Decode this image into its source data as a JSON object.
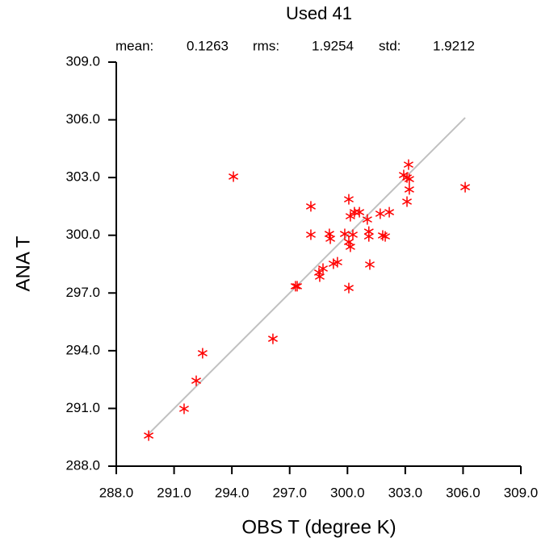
{
  "chart_data": {
    "type": "scatter",
    "title": "Used  41",
    "stats": [
      {
        "label": "mean:",
        "value": 0.1263
      },
      {
        "label": "rms:",
        "value": 1.9254
      },
      {
        "label": "std:",
        "value": 1.9212
      }
    ],
    "x_label": "OBS T  (degree K)",
    "y_label": "ANA T",
    "x": [
      289.68,
      291.52,
      292.15,
      292.48,
      294.08,
      296.13,
      297.3,
      297.39,
      298.1,
      298.1,
      298.52,
      298.56,
      298.73,
      299.06,
      299.11,
      299.27,
      299.48,
      299.86,
      300.07,
      300.07,
      300.15,
      300.15,
      300.28,
      300.36,
      300.07,
      300.62,
      301.03,
      301.11,
      301.11,
      301.16,
      301.7,
      301.83,
      301.96,
      302.17,
      302.92,
      303.09,
      303.09,
      303.17,
      303.21,
      303.21,
      306.11
    ],
    "values": [
      289.59,
      290.98,
      292.44,
      293.87,
      303.05,
      294.62,
      297.35,
      297.35,
      301.5,
      300.03,
      298.06,
      297.85,
      298.27,
      300.07,
      299.82,
      298.52,
      298.6,
      300.07,
      301.87,
      297.26,
      299.4,
      300.99,
      300.03,
      301.2,
      299.65,
      301.2,
      300.82,
      299.94,
      300.19,
      298.48,
      301.12,
      299.99,
      299.94,
      301.2,
      303.13,
      303.0,
      301.75,
      303.67,
      302.38,
      302.92,
      302.5
    ],
    "color": "#ff0000",
    "reference_line": {
      "x": [
        289.68,
        306.11
      ],
      "values": [
        289.68,
        306.11
      ],
      "color": "#c0c0c0"
    },
    "xlim": [
      288,
      309
    ],
    "ylim": [
      288,
      309
    ],
    "xticks": [
      {
        "value": 288,
        "label": "288.0"
      },
      {
        "value": 291,
        "label": "291.0"
      },
      {
        "value": 294,
        "label": "294.0"
      },
      {
        "value": 297,
        "label": "297.0"
      },
      {
        "value": 300,
        "label": "300.0"
      },
      {
        "value": 303,
        "label": "303.0"
      },
      {
        "value": 306,
        "label": "306.0"
      },
      {
        "value": 309,
        "label": "309.0"
      }
    ],
    "yticks": [
      {
        "value": 288,
        "label": "288.0"
      },
      {
        "value": 291,
        "label": "291.0"
      },
      {
        "value": 294,
        "label": "294.0"
      },
      {
        "value": 297,
        "label": "297.0"
      },
      {
        "value": 300,
        "label": "300.0"
      },
      {
        "value": 303,
        "label": "303.0"
      },
      {
        "value": 306,
        "label": "306.0"
      },
      {
        "value": 309,
        "label": "309.0"
      }
    ],
    "grid": false
  }
}
